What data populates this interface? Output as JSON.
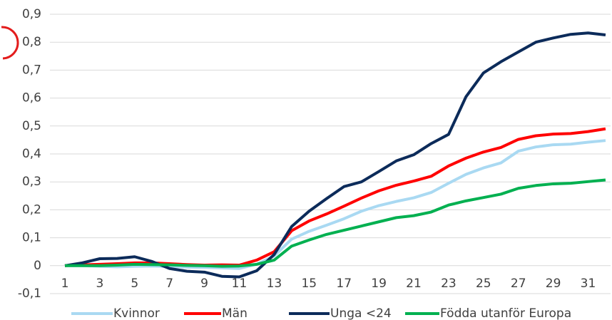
{
  "chart_data": {
    "type": "line",
    "categories": [
      1,
      null,
      3,
      null,
      5,
      null,
      7,
      null,
      9,
      null,
      11,
      null,
      13,
      null,
      15,
      null,
      17,
      null,
      19,
      null,
      21,
      null,
      23,
      null,
      25,
      null,
      27,
      null,
      29,
      null,
      31,
      null
    ],
    "series": [
      {
        "name": "Kvinnor",
        "color": "#a9d9f2",
        "values": [
          0,
          0,
          -0.002,
          -0.004,
          -0.002,
          -0.001,
          -0.003,
          -0.005,
          -0.006,
          -0.008,
          -0.01,
          0.005,
          0.035,
          0.095,
          0.123,
          0.145,
          0.168,
          0.195,
          0.215,
          0.23,
          0.243,
          0.262,
          0.295,
          0.327,
          0.35,
          0.368,
          0.41,
          0.425,
          0.433,
          0.435,
          0.442,
          0.448
        ]
      },
      {
        "name": "Män",
        "color": "#ff0000",
        "values": [
          0,
          0.003,
          0.005,
          0.007,
          0.01,
          0.01,
          0.007,
          0.004,
          0.002,
          0.003,
          0.002,
          0.02,
          0.05,
          0.125,
          0.16,
          0.185,
          0.213,
          0.242,
          0.268,
          0.288,
          0.303,
          0.32,
          0.357,
          0.385,
          0.407,
          0.423,
          0.452,
          0.465,
          0.471,
          0.473,
          0.48,
          0.49
        ]
      },
      {
        "name": "Unga <24",
        "color": "#0c2b5a",
        "values": [
          0,
          0.01,
          0.025,
          0.026,
          0.032,
          0.015,
          -0.01,
          -0.02,
          -0.023,
          -0.038,
          -0.04,
          -0.018,
          0.04,
          0.14,
          0.195,
          0.24,
          0.283,
          0.3,
          0.337,
          0.375,
          0.397,
          0.437,
          0.47,
          0.605,
          0.69,
          0.73,
          0.765,
          0.8,
          0.815,
          0.828,
          0.833,
          0.826
        ]
      },
      {
        "name": "Födda utanför Europa",
        "color": "#00b050",
        "values": [
          0,
          0,
          0,
          0.002,
          0.005,
          0.004,
          0.003,
          0.001,
          0,
          -0.002,
          -0.001,
          0.005,
          0.02,
          0.07,
          0.092,
          0.112,
          0.127,
          0.142,
          0.157,
          0.172,
          0.179,
          0.192,
          0.217,
          0.232,
          0.244,
          0.256,
          0.277,
          0.287,
          0.293,
          0.295,
          0.301,
          0.307
        ]
      }
    ],
    "ylim": [
      -0.1,
      0.9
    ],
    "yticks": [
      {
        "value": -0.1,
        "label": "-0,1"
      },
      0,
      {
        "value": 0.1,
        "label": "0,1"
      },
      {
        "value": 0.2,
        "label": "0,2"
      },
      {
        "value": 0.3,
        "label": "0,3"
      },
      {
        "value": 0.4,
        "label": "0,4"
      },
      {
        "value": 0.5,
        "label": "0,5"
      },
      {
        "value": 0.6,
        "label": "0,6"
      },
      {
        "value": 0.7,
        "label": "0,7"
      },
      {
        "value": 0.8,
        "label": "0,8"
      },
      {
        "value": 0.9,
        "label": "0,9"
      }
    ],
    "grid": true,
    "legend": "bottom"
  }
}
